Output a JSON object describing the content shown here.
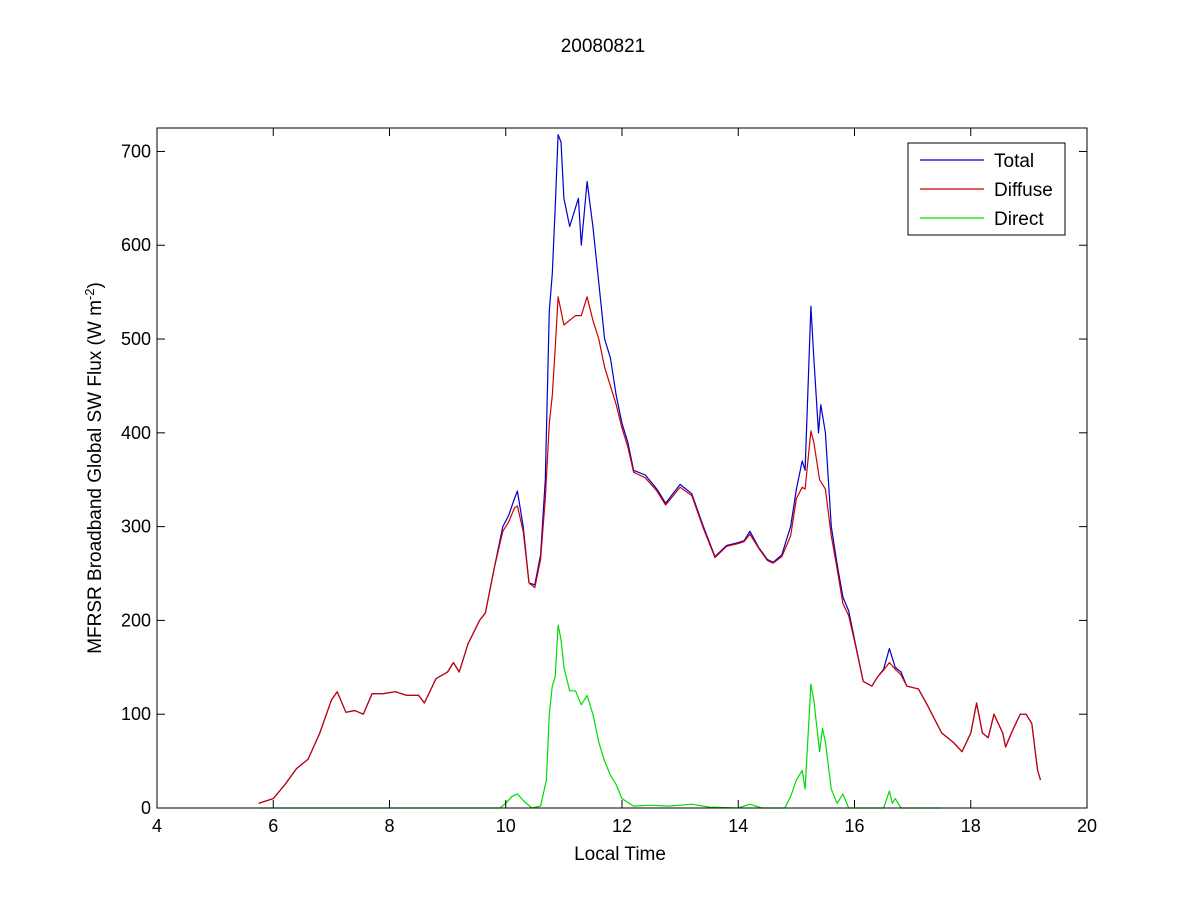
{
  "chart_data": {
    "type": "line",
    "title": "20080821",
    "xlabel": "Local Time",
    "ylabel": "MFRSR Broadband Global SW Flux (W m",
    "ylabel_sup": "-2",
    "ylabel_close": ")",
    "xlim": [
      4,
      20
    ],
    "ylim": [
      0,
      725
    ],
    "xticks": [
      4,
      6,
      8,
      10,
      12,
      14,
      16,
      18,
      20
    ],
    "yticks": [
      0,
      100,
      200,
      300,
      400,
      500,
      600,
      700
    ],
    "grid": false,
    "legend_position": "top-right",
    "series": [
      {
        "name": "Total",
        "color": "#0000cc",
        "points": [
          [
            5.75,
            5
          ],
          [
            6.0,
            10
          ],
          [
            6.2,
            25
          ],
          [
            6.4,
            42
          ],
          [
            6.6,
            52
          ],
          [
            6.8,
            80
          ],
          [
            7.0,
            115
          ],
          [
            7.1,
            124
          ],
          [
            7.25,
            102
          ],
          [
            7.4,
            104
          ],
          [
            7.55,
            100
          ],
          [
            7.7,
            122
          ],
          [
            7.9,
            122
          ],
          [
            8.1,
            124
          ],
          [
            8.3,
            120
          ],
          [
            8.5,
            120
          ],
          [
            8.6,
            112
          ],
          [
            8.8,
            138
          ],
          [
            9.0,
            145
          ],
          [
            9.1,
            155
          ],
          [
            9.2,
            145
          ],
          [
            9.35,
            175
          ],
          [
            9.55,
            200
          ],
          [
            9.65,
            208
          ],
          [
            9.8,
            255
          ],
          [
            9.95,
            300
          ],
          [
            10.05,
            312
          ],
          [
            10.15,
            330
          ],
          [
            10.2,
            338
          ],
          [
            10.3,
            300
          ],
          [
            10.4,
            240
          ],
          [
            10.5,
            238
          ],
          [
            10.6,
            270
          ],
          [
            10.68,
            350
          ],
          [
            10.75,
            530
          ],
          [
            10.8,
            570
          ],
          [
            10.85,
            640
          ],
          [
            10.9,
            718
          ],
          [
            10.95,
            710
          ],
          [
            11.0,
            650
          ],
          [
            11.1,
            620
          ],
          [
            11.2,
            640
          ],
          [
            11.25,
            650
          ],
          [
            11.3,
            600
          ],
          [
            11.4,
            668
          ],
          [
            11.5,
            620
          ],
          [
            11.6,
            560
          ],
          [
            11.7,
            500
          ],
          [
            11.8,
            480
          ],
          [
            11.9,
            440
          ],
          [
            12.0,
            410
          ],
          [
            12.1,
            390
          ],
          [
            12.2,
            360
          ],
          [
            12.4,
            355
          ],
          [
            12.6,
            340
          ],
          [
            12.75,
            325
          ],
          [
            13.0,
            345
          ],
          [
            13.2,
            335
          ],
          [
            13.4,
            300
          ],
          [
            13.6,
            268
          ],
          [
            13.8,
            280
          ],
          [
            14.0,
            283
          ],
          [
            14.1,
            285
          ],
          [
            14.2,
            295
          ],
          [
            14.35,
            278
          ],
          [
            14.5,
            265
          ],
          [
            14.6,
            262
          ],
          [
            14.75,
            270
          ],
          [
            14.9,
            300
          ],
          [
            15.0,
            340
          ],
          [
            15.1,
            370
          ],
          [
            15.15,
            360
          ],
          [
            15.25,
            535
          ],
          [
            15.3,
            480
          ],
          [
            15.38,
            400
          ],
          [
            15.42,
            430
          ],
          [
            15.5,
            400
          ],
          [
            15.6,
            300
          ],
          [
            15.7,
            260
          ],
          [
            15.8,
            225
          ],
          [
            15.9,
            210
          ],
          [
            16.0,
            180
          ],
          [
            16.15,
            135
          ],
          [
            16.3,
            130
          ],
          [
            16.4,
            140
          ],
          [
            16.5,
            148
          ],
          [
            16.6,
            170
          ],
          [
            16.7,
            150
          ],
          [
            16.8,
            145
          ],
          [
            16.9,
            130
          ],
          [
            17.1,
            127
          ],
          [
            17.25,
            110
          ],
          [
            17.5,
            80
          ],
          [
            17.7,
            70
          ],
          [
            17.85,
            60
          ],
          [
            18.0,
            80
          ],
          [
            18.1,
            112
          ],
          [
            18.2,
            80
          ],
          [
            18.3,
            75
          ],
          [
            18.4,
            100
          ],
          [
            18.55,
            80
          ],
          [
            18.6,
            65
          ],
          [
            18.7,
            80
          ],
          [
            18.85,
            100
          ],
          [
            18.95,
            100
          ],
          [
            19.05,
            90
          ],
          [
            19.15,
            40
          ],
          [
            19.2,
            30
          ]
        ]
      },
      {
        "name": "Diffuse",
        "color": "#cc0000",
        "points": [
          [
            5.75,
            5
          ],
          [
            6.0,
            10
          ],
          [
            6.2,
            25
          ],
          [
            6.4,
            42
          ],
          [
            6.6,
            52
          ],
          [
            6.8,
            80
          ],
          [
            7.0,
            115
          ],
          [
            7.1,
            124
          ],
          [
            7.25,
            102
          ],
          [
            7.4,
            104
          ],
          [
            7.55,
            100
          ],
          [
            7.7,
            122
          ],
          [
            7.9,
            122
          ],
          [
            8.1,
            124
          ],
          [
            8.3,
            120
          ],
          [
            8.5,
            120
          ],
          [
            8.6,
            112
          ],
          [
            8.8,
            138
          ],
          [
            9.0,
            145
          ],
          [
            9.1,
            155
          ],
          [
            9.2,
            145
          ],
          [
            9.35,
            175
          ],
          [
            9.55,
            200
          ],
          [
            9.65,
            208
          ],
          [
            9.8,
            255
          ],
          [
            9.95,
            295
          ],
          [
            10.05,
            305
          ],
          [
            10.15,
            320
          ],
          [
            10.2,
            322
          ],
          [
            10.3,
            295
          ],
          [
            10.4,
            240
          ],
          [
            10.5,
            235
          ],
          [
            10.6,
            265
          ],
          [
            10.68,
            330
          ],
          [
            10.75,
            410
          ],
          [
            10.8,
            440
          ],
          [
            10.85,
            490
          ],
          [
            10.9,
            545
          ],
          [
            10.95,
            530
          ],
          [
            11.0,
            515
          ],
          [
            11.1,
            520
          ],
          [
            11.2,
            525
          ],
          [
            11.3,
            525
          ],
          [
            11.4,
            545
          ],
          [
            11.5,
            520
          ],
          [
            11.6,
            500
          ],
          [
            11.7,
            470
          ],
          [
            11.8,
            450
          ],
          [
            11.9,
            430
          ],
          [
            12.0,
            405
          ],
          [
            12.1,
            385
          ],
          [
            12.2,
            358
          ],
          [
            12.4,
            352
          ],
          [
            12.6,
            338
          ],
          [
            12.75,
            323
          ],
          [
            13.0,
            342
          ],
          [
            13.2,
            333
          ],
          [
            13.4,
            298
          ],
          [
            13.6,
            267
          ],
          [
            13.8,
            279
          ],
          [
            14.0,
            282
          ],
          [
            14.1,
            284
          ],
          [
            14.2,
            292
          ],
          [
            14.35,
            277
          ],
          [
            14.5,
            264
          ],
          [
            14.6,
            261
          ],
          [
            14.75,
            268
          ],
          [
            14.9,
            290
          ],
          [
            15.0,
            330
          ],
          [
            15.1,
            342
          ],
          [
            15.15,
            340
          ],
          [
            15.25,
            402
          ],
          [
            15.3,
            390
          ],
          [
            15.4,
            350
          ],
          [
            15.5,
            340
          ],
          [
            15.6,
            290
          ],
          [
            15.7,
            255
          ],
          [
            15.8,
            218
          ],
          [
            15.9,
            205
          ],
          [
            16.0,
            178
          ],
          [
            16.15,
            135
          ],
          [
            16.3,
            130
          ],
          [
            16.4,
            140
          ],
          [
            16.5,
            147
          ],
          [
            16.6,
            155
          ],
          [
            16.7,
            148
          ],
          [
            16.8,
            142
          ],
          [
            16.9,
            130
          ],
          [
            17.1,
            127
          ],
          [
            17.25,
            110
          ],
          [
            17.5,
            80
          ],
          [
            17.7,
            70
          ],
          [
            17.85,
            60
          ],
          [
            18.0,
            80
          ],
          [
            18.1,
            112
          ],
          [
            18.2,
            80
          ],
          [
            18.3,
            75
          ],
          [
            18.4,
            100
          ],
          [
            18.55,
            80
          ],
          [
            18.6,
            65
          ],
          [
            18.7,
            80
          ],
          [
            18.85,
            100
          ],
          [
            18.95,
            100
          ],
          [
            19.05,
            90
          ],
          [
            19.15,
            40
          ],
          [
            19.2,
            30
          ]
        ]
      },
      {
        "name": "Direct",
        "color": "#00dd00",
        "points": [
          [
            5.75,
            0
          ],
          [
            9.9,
            0
          ],
          [
            10.0,
            5
          ],
          [
            10.1,
            12
          ],
          [
            10.2,
            15
          ],
          [
            10.3,
            8
          ],
          [
            10.45,
            0
          ],
          [
            10.6,
            2
          ],
          [
            10.7,
            30
          ],
          [
            10.75,
            100
          ],
          [
            10.8,
            130
          ],
          [
            10.85,
            140
          ],
          [
            10.9,
            195
          ],
          [
            10.95,
            180
          ],
          [
            11.0,
            150
          ],
          [
            11.1,
            125
          ],
          [
            11.2,
            125
          ],
          [
            11.3,
            110
          ],
          [
            11.4,
            120
          ],
          [
            11.5,
            100
          ],
          [
            11.6,
            70
          ],
          [
            11.7,
            50
          ],
          [
            11.8,
            35
          ],
          [
            11.9,
            25
          ],
          [
            12.0,
            10
          ],
          [
            12.2,
            2
          ],
          [
            12.5,
            3
          ],
          [
            12.8,
            2
          ],
          [
            13.2,
            4
          ],
          [
            13.5,
            1
          ],
          [
            14.0,
            0
          ],
          [
            14.2,
            4
          ],
          [
            14.4,
            0
          ],
          [
            14.8,
            0
          ],
          [
            14.9,
            12
          ],
          [
            15.0,
            30
          ],
          [
            15.1,
            40
          ],
          [
            15.15,
            20
          ],
          [
            15.25,
            132
          ],
          [
            15.3,
            115
          ],
          [
            15.4,
            60
          ],
          [
            15.45,
            85
          ],
          [
            15.5,
            70
          ],
          [
            15.6,
            20
          ],
          [
            15.7,
            5
          ],
          [
            15.8,
            15
          ],
          [
            15.9,
            0
          ],
          [
            16.5,
            0
          ],
          [
            16.6,
            18
          ],
          [
            16.65,
            5
          ],
          [
            16.7,
            10
          ],
          [
            16.8,
            0
          ],
          [
            17.5,
            0
          ]
        ]
      }
    ]
  }
}
